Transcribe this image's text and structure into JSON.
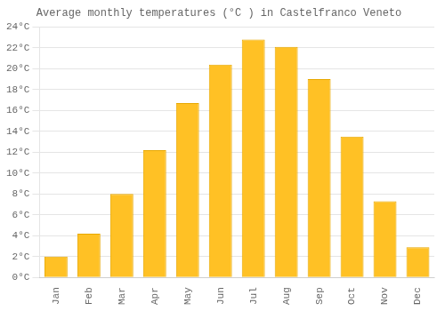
{
  "chart_data": {
    "type": "bar",
    "title": "Average monthly temperatures (°C ) in Castelfranco Veneto",
    "categories": [
      "Jan",
      "Feb",
      "Mar",
      "Apr",
      "May",
      "Jun",
      "Jul",
      "Aug",
      "Sep",
      "Oct",
      "Nov",
      "Dec"
    ],
    "values": [
      2.0,
      4.2,
      8.0,
      12.2,
      16.7,
      20.4,
      22.8,
      22.1,
      19.0,
      13.5,
      7.3,
      2.9
    ],
    "color": "#FFC125",
    "ylim": [
      0,
      24
    ],
    "yticks": [
      {
        "value": 0,
        "label": "0°C"
      },
      {
        "value": 2,
        "label": "2°C"
      },
      {
        "value": 4,
        "label": "4°C"
      },
      {
        "value": 6,
        "label": "6°C"
      },
      {
        "value": 8,
        "label": "8°C"
      },
      {
        "value": 10,
        "label": "10°C"
      },
      {
        "value": 12,
        "label": "12°C"
      },
      {
        "value": 14,
        "label": "14°C"
      },
      {
        "value": 16,
        "label": "16°C"
      },
      {
        "value": 18,
        "label": "18°C"
      },
      {
        "value": 20,
        "label": "20°C"
      },
      {
        "value": 22,
        "label": "22°C"
      },
      {
        "value": 24,
        "label": "24°C"
      }
    ],
    "grid": true
  }
}
